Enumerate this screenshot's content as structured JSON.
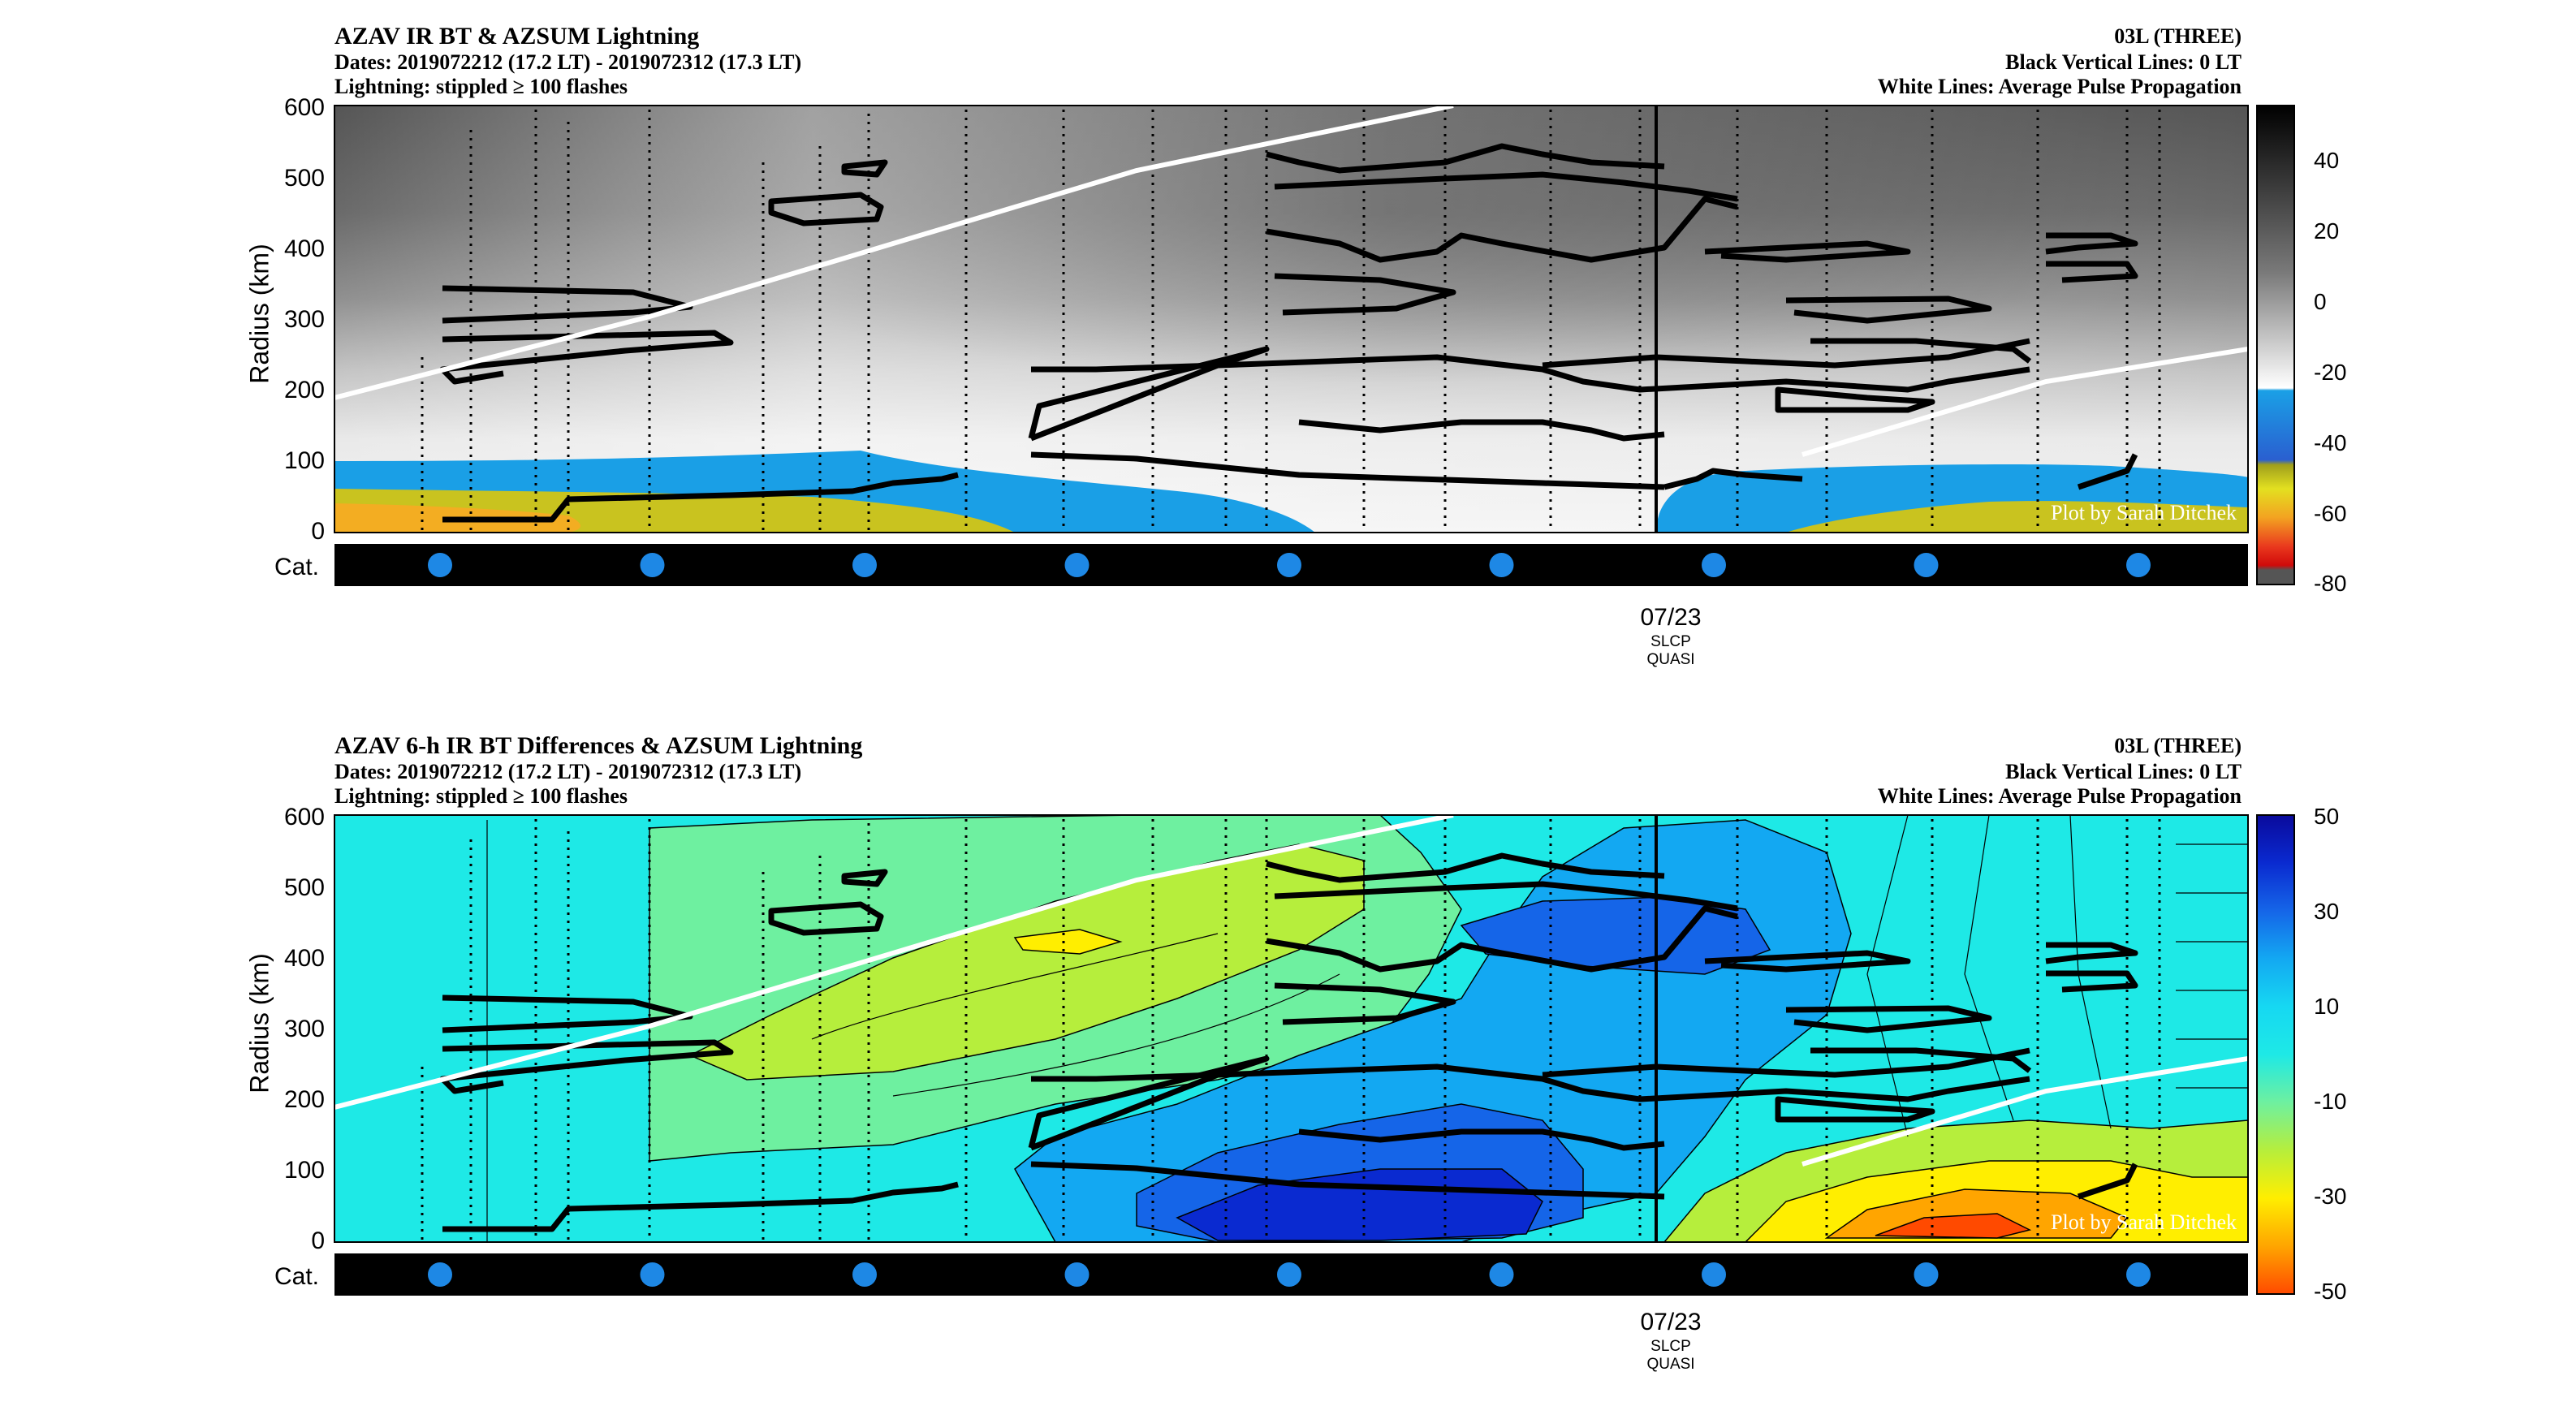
{
  "chart_data": [
    {
      "type": "heatmap",
      "title": "AZAV IR BT & AZSUM Lightning",
      "subtitle_lines": [
        "Dates: 2019072212 (17.2 LT) - 2019072312 (17.3 LT)",
        "Lightning: stippled ≥ 100 flashes"
      ],
      "right_lines": [
        "03L (THREE)",
        "Black Vertical Lines: 0 LT",
        "White Lines: Average Pulse Propagation"
      ],
      "ylabel": "Radius (km)",
      "yticks": [
        "600",
        "500",
        "400",
        "300",
        "200",
        "100",
        "0"
      ],
      "ylim": [
        0,
        600
      ],
      "category_label": "Cat.",
      "x_date_label": "07/23",
      "x_sub_labels": [
        "SLCP",
        "QUASI"
      ],
      "colorbar_ticks": [
        "40",
        "20",
        "0",
        "-20",
        "-40",
        "-60",
        "-80"
      ],
      "colorbar_range": [
        -80,
        55
      ],
      "watermark": "Plot by Sarah Ditchek",
      "category_markers": 9
    },
    {
      "type": "heatmap",
      "title": "AZAV 6-h IR BT Differences & AZSUM Lightning",
      "subtitle_lines": [
        "Dates: 2019072212 (17.2 LT) - 2019072312 (17.3 LT)",
        "Lightning: stippled ≥ 100 flashes"
      ],
      "right_lines": [
        "03L (THREE)",
        "Black Vertical Lines: 0 LT",
        "White Lines: Average Pulse Propagation"
      ],
      "ylabel": "Radius (km)",
      "yticks": [
        "600",
        "500",
        "400",
        "300",
        "200",
        "100",
        "0"
      ],
      "ylim": [
        0,
        600
      ],
      "category_label": "Cat.",
      "x_date_label": "07/23",
      "x_sub_labels": [
        "SLCP",
        "QUASI"
      ],
      "colorbar_ticks": [
        "50",
        "30",
        "10",
        "-10",
        "-30",
        "-50"
      ],
      "colorbar_range": [
        -50,
        50
      ],
      "watermark": "Plot by Sarah Ditchek",
      "category_markers": 9
    }
  ],
  "colors": {
    "marker": "#1e88e5",
    "cat_bar": "#000000",
    "pulse_line": "#ffffff"
  }
}
